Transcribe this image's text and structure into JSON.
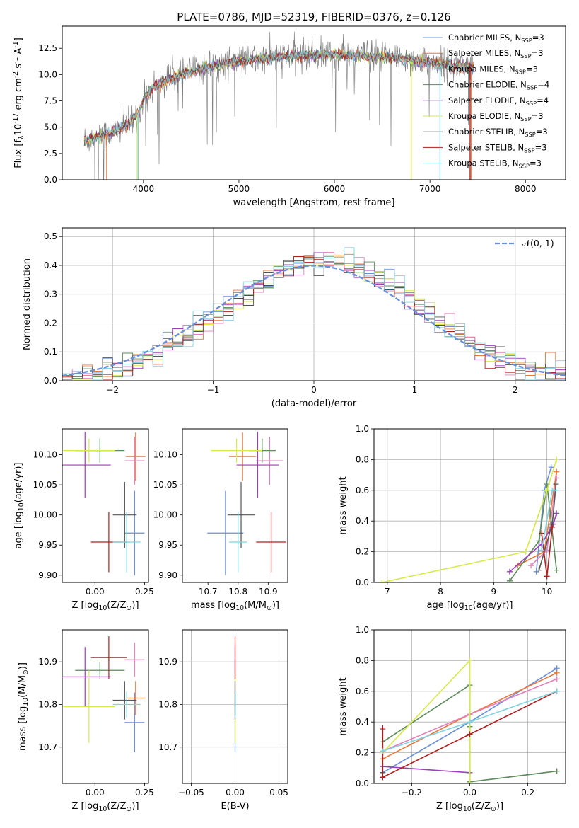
{
  "colors": [
    "#6a8fd9",
    "#e8773a",
    "#e47fba",
    "#5c8a5a",
    "#9b3fba",
    "#d6ea4a",
    "#555555",
    "#b01e1e",
    "#7fd4df"
  ],
  "title": "PLATE=0786, MJD=52319, FIBERID=0376, z=0.126",
  "chart_data": [
    {
      "id": "spectrum",
      "type": "line",
      "title": "PLATE=0786, MJD=52319, FIBERID=0376, z=0.126",
      "xlabel": "wavelength [Angstrom, rest frame]",
      "ylabel": "Flux [f$_\\lambda$10$^{-17}$ erg cm$^{-2}$ s$^{-1}$ A$^{-1}$]",
      "xlim": [
        3150,
        8420
      ],
      "ylim": [
        0,
        14.6
      ],
      "xticks": [
        4000,
        5000,
        6000,
        7000,
        8000
      ],
      "yticks": [
        0.0,
        2.5,
        5.0,
        7.5,
        10.0,
        12.5
      ],
      "legend": "top-right",
      "continuum": [
        [
          3380,
          3.8
        ],
        [
          3500,
          4.0
        ],
        [
          3700,
          4.6
        ],
        [
          3850,
          5.3
        ],
        [
          3950,
          6.4
        ],
        [
          4050,
          8.4
        ],
        [
          4200,
          9.3
        ],
        [
          4350,
          9.8
        ],
        [
          4500,
          10.3
        ],
        [
          4700,
          10.8
        ],
        [
          5000,
          11.3
        ],
        [
          5300,
          11.6
        ],
        [
          5600,
          11.8
        ],
        [
          6000,
          11.9
        ],
        [
          6300,
          11.8
        ],
        [
          6600,
          11.6
        ],
        [
          6900,
          11.3
        ],
        [
          7100,
          11.0
        ],
        [
          7300,
          10.8
        ],
        [
          7450,
          10.6
        ]
      ],
      "series": [
        {
          "name": "Chabrier MILES, N$_{SSP}$=3",
          "color": "#6a8fd9"
        },
        {
          "name": "Salpeter MILES, N$_{SSP}$=3",
          "color": "#e8773a"
        },
        {
          "name": "Kroupa MILES, N$_{SSP}$=3",
          "color": "#e8773a"
        },
        {
          "name": "Chabrier ELODIE, N$_{SSP}$=4",
          "color": "#5c8a5a"
        },
        {
          "name": "Salpeter ELODIE, N$_{SSP}$=4",
          "color": "#9b3fba"
        },
        {
          "name": "Kroupa ELODIE, N$_{SSP}$=3",
          "color": "#d6ea4a"
        },
        {
          "name": "Chabrier STELIB, N$_{SSP}$=3",
          "color": "#555555"
        },
        {
          "name": "Salpeter STELIB, N$_{SSP}$=3",
          "color": "#b01e1e"
        },
        {
          "name": "Kroupa STELIB, N$_{SSP}$=3",
          "color": "#7fd4df"
        }
      ]
    },
    {
      "id": "residuals",
      "type": "histogram",
      "xlabel": "(data-model)/error",
      "ylabel": "Normed distribution",
      "xlim": [
        -2.5,
        2.5
      ],
      "ylim": [
        0,
        0.53
      ],
      "xticks": [
        -2,
        -1,
        0,
        1,
        2
      ],
      "yticks": [
        0.0,
        0.1,
        0.2,
        0.3,
        0.4,
        0.5
      ],
      "grid": true,
      "legend": "top-right",
      "reference_label": "$\\mathcal{N}(0, 1)$",
      "bin_width": 0.1
    },
    {
      "id": "age_vs_Z",
      "type": "errorbar",
      "xlabel": "Z [log$_{10}$(Z/Z$_\\odot$)]",
      "ylabel": "age  [log$_{10}$($age/yr$)]",
      "xlim": [
        -0.165,
        0.27
      ],
      "ylim": [
        9.888,
        10.143
      ],
      "xticks": [
        0.0,
        0.25
      ],
      "yticks": [
        9.9,
        9.95,
        10.0,
        10.05,
        10.1
      ],
      "points": [
        {
          "c": "#6a8fd9",
          "x": 0.2,
          "xe": 0.05,
          "y": 9.97,
          "ye": 0.07
        },
        {
          "c": "#e8773a",
          "x": 0.205,
          "xe": 0.05,
          "y": 10.097,
          "ye": 0.04
        },
        {
          "c": "#e47fba",
          "x": 0.2,
          "xe": 0.05,
          "y": 10.09,
          "ye": 0.04
        },
        {
          "c": "#5c8a5a",
          "x": 0.025,
          "xe": 0.125,
          "y": 10.107,
          "ye": 0.02
        },
        {
          "c": "#9b3fba",
          "x": -0.05,
          "xe": 0.13,
          "y": 10.083,
          "ye": 0.055
        },
        {
          "c": "#d6ea4a",
          "x": -0.03,
          "xe": 0.13,
          "y": 10.107,
          "ye": 0.02
        },
        {
          "c": "#555555",
          "x": 0.15,
          "xe": 0.06,
          "y": 10.0,
          "ye": 0.055
        },
        {
          "c": "#b01e1e",
          "x": 0.07,
          "xe": 0.09,
          "y": 9.955,
          "ye": 0.05
        },
        {
          "c": "#7fd4df",
          "x": 0.16,
          "xe": 0.07,
          "y": 9.955,
          "ye": 0.05
        }
      ]
    },
    {
      "id": "age_vs_mass",
      "type": "errorbar",
      "xlabel": "mass [log$_{10}$($M/M_\\odot$)]",
      "xlim": [
        10.615,
        10.965
      ],
      "ylim": [
        9.888,
        10.143
      ],
      "xticks": [
        10.7,
        10.8,
        10.9
      ],
      "yticks": [
        9.9,
        9.95,
        10.0,
        10.05,
        10.1
      ],
      "points": [
        {
          "c": "#6a8fd9",
          "x": 10.758,
          "xe": 0.06,
          "y": 9.97,
          "ye": 0.07
        },
        {
          "c": "#e8773a",
          "x": 10.815,
          "xe": 0.045,
          "y": 10.097,
          "ye": 0.04
        },
        {
          "c": "#e47fba",
          "x": 10.905,
          "xe": 0.045,
          "y": 10.09,
          "ye": 0.04
        },
        {
          "c": "#5c8a5a",
          "x": 10.88,
          "xe": 0.045,
          "y": 10.107,
          "ye": 0.02
        },
        {
          "c": "#9b3fba",
          "x": 10.865,
          "xe": 0.07,
          "y": 10.083,
          "ye": 0.055
        },
        {
          "c": "#d6ea4a",
          "x": 10.795,
          "xe": 0.085,
          "y": 10.107,
          "ye": 0.02
        },
        {
          "c": "#555555",
          "x": 10.81,
          "xe": 0.045,
          "y": 10.0,
          "ye": 0.055
        },
        {
          "c": "#b01e1e",
          "x": 10.91,
          "xe": 0.05,
          "y": 9.955,
          "ye": 0.05
        },
        {
          "c": "#7fd4df",
          "x": 10.8,
          "xe": 0.03,
          "y": 9.955,
          "ye": 0.05
        }
      ]
    },
    {
      "id": "weight_vs_age",
      "type": "line",
      "xlabel": "age  [log$_{10}$($age/yr$)]",
      "ylabel": "mass weight",
      "xlim": [
        6.75,
        10.35
      ],
      "ylim": [
        0,
        1.0
      ],
      "xticks": [
        7,
        8,
        9,
        10
      ],
      "yticks": [
        0.0,
        0.2,
        0.4,
        0.6,
        0.8,
        1.0
      ],
      "grid": true,
      "series": [
        {
          "c": "#6a8fd9",
          "x": [
            9.8,
            9.95,
            10.08
          ],
          "y": [
            0.07,
            0.6,
            0.75
          ]
        },
        {
          "c": "#e8773a",
          "x": [
            9.45,
            9.95,
            10.18
          ],
          "y": [
            0.11,
            0.2,
            0.72
          ]
        },
        {
          "c": "#e47fba",
          "x": [
            9.7,
            10.0,
            10.18
          ],
          "y": [
            0.11,
            0.21,
            0.68
          ]
        },
        {
          "c": "#5c8a5a",
          "x": [
            9.3,
            9.85,
            10.0,
            10.18
          ],
          "y": [
            0.01,
            0.27,
            0.64,
            0.08
          ]
        },
        {
          "c": "#9b3fba",
          "x": [
            9.3,
            9.9,
            10.12,
            10.18
          ],
          "y": [
            0.07,
            0.25,
            0.38,
            0.45
          ]
        },
        {
          "c": "#d6ea4a",
          "x": [
            6.9,
            9.6,
            10.0,
            10.18
          ],
          "y": [
            0.0,
            0.2,
            0.6,
            0.8
          ]
        },
        {
          "c": "#555555",
          "x": [
            9.85,
            10.1,
            10.17
          ],
          "y": [
            0.08,
            0.38,
            0.64
          ]
        },
        {
          "c": "#b01e1e",
          "x": [
            9.9,
            10.0,
            10.1
          ],
          "y": [
            0.32,
            0.04,
            0.36
          ]
        },
        {
          "c": "#7fd4df",
          "x": [
            9.9,
            10.1,
            10.17
          ],
          "y": [
            0.21,
            0.6,
            0.6
          ]
        }
      ]
    },
    {
      "id": "mass_vs_Z",
      "type": "errorbar",
      "xlabel": "Z [log$_{10}$(Z/Z$_\\odot$)]",
      "ylabel": "mass [log$_{10}$($M/M_\\odot$)]",
      "xlim": [
        -0.165,
        0.27
      ],
      "ylim": [
        10.615,
        10.975
      ],
      "xticks": [
        0.0,
        0.25
      ],
      "yticks": [
        10.7,
        10.8,
        10.9
      ],
      "points": [
        {
          "c": "#6a8fd9",
          "x": 0.2,
          "xe": 0.05,
          "y": 10.758,
          "ye": 0.07
        },
        {
          "c": "#e8773a",
          "x": 0.205,
          "xe": 0.05,
          "y": 10.815,
          "ye": 0.04
        },
        {
          "c": "#e47fba",
          "x": 0.2,
          "xe": 0.05,
          "y": 10.905,
          "ye": 0.04
        },
        {
          "c": "#5c8a5a",
          "x": 0.025,
          "xe": 0.125,
          "y": 10.88,
          "ye": 0.02
        },
        {
          "c": "#9b3fba",
          "x": -0.05,
          "xe": 0.13,
          "y": 10.865,
          "ye": 0.07
        },
        {
          "c": "#d6ea4a",
          "x": -0.03,
          "xe": 0.13,
          "y": 10.795,
          "ye": 0.085
        },
        {
          "c": "#555555",
          "x": 0.15,
          "xe": 0.06,
          "y": 10.81,
          "ye": 0.045
        },
        {
          "c": "#b01e1e",
          "x": 0.07,
          "xe": 0.09,
          "y": 10.91,
          "ye": 0.05
        },
        {
          "c": "#7fd4df",
          "x": 0.16,
          "xe": 0.07,
          "y": 10.8,
          "ye": 0.03
        }
      ]
    },
    {
      "id": "mass_vs_EBV",
      "type": "errorbar",
      "xlabel": "E(B-V)",
      "xlim": [
        -0.06,
        0.06
      ],
      "ylim": [
        10.615,
        10.975
      ],
      "xticks": [
        -0.05,
        0.0,
        0.05
      ],
      "yticks": [
        10.7,
        10.8,
        10.9
      ],
      "points": [
        {
          "c": "#6a8fd9",
          "x": 0,
          "xe": 0,
          "y": 10.758,
          "ye": 0.07
        },
        {
          "c": "#e8773a",
          "x": 0,
          "xe": 0,
          "y": 10.815,
          "ye": 0.04
        },
        {
          "c": "#e47fba",
          "x": 0,
          "xe": 0,
          "y": 10.905,
          "ye": 0.04
        },
        {
          "c": "#5c8a5a",
          "x": 0,
          "xe": 0,
          "y": 10.88,
          "ye": 0.02
        },
        {
          "c": "#9b3fba",
          "x": 0,
          "xe": 0,
          "y": 10.865,
          "ye": 0.07
        },
        {
          "c": "#d6ea4a",
          "x": 0,
          "xe": 0,
          "y": 10.795,
          "ye": 0.085
        },
        {
          "c": "#555555",
          "x": 0,
          "xe": 0,
          "y": 10.81,
          "ye": 0.045
        },
        {
          "c": "#b01e1e",
          "x": 0,
          "xe": 0,
          "y": 10.91,
          "ye": 0.05
        },
        {
          "c": "#7fd4df",
          "x": 0,
          "xe": 0,
          "y": 10.8,
          "ye": 0.03
        }
      ]
    },
    {
      "id": "weight_vs_Z",
      "type": "line",
      "xlabel": "Z [log$_{10}$(Z/Z$_\\odot$)]",
      "ylabel": "mass weight",
      "xlim": [
        -0.33,
        0.33
      ],
      "ylim": [
        0,
        1.0
      ],
      "xticks": [
        -0.2,
        0.0,
        0.2
      ],
      "yticks": [
        0.0,
        0.2,
        0.4,
        0.6,
        0.8,
        1.0
      ],
      "grid": true,
      "series": [
        {
          "c": "#6a8fd9",
          "x": [
            -0.3,
            0.0,
            0.3
          ],
          "y": [
            0.07,
            0.4,
            0.75
          ]
        },
        {
          "c": "#e8773a",
          "x": [
            -0.3,
            0.0,
            0.3
          ],
          "y": [
            0.16,
            0.45,
            0.72
          ]
        },
        {
          "c": "#e47fba",
          "x": [
            -0.3,
            0.0,
            0.3
          ],
          "y": [
            0.21,
            0.45,
            0.68
          ]
        },
        {
          "c": "#5c8a5a",
          "x": [
            -0.3,
            0.0,
            0.0,
            0.0,
            0.3
          ],
          "y": [
            0.27,
            0.64,
            0.37,
            0.01,
            0.08
          ]
        },
        {
          "c": "#9b3fba",
          "x": [
            -0.3,
            0.0
          ],
          "y": [
            0.11,
            0.07
          ]
        },
        {
          "c": "#d6ea4a",
          "x": [
            -0.3,
            0.0,
            0.0
          ],
          "y": [
            0.2,
            0.8,
            0.0
          ]
        },
        {
          "c": "#555555",
          "x": [
            -0.3,
            -0.3
          ],
          "y": [
            0.35,
            0.07
          ]
        },
        {
          "c": "#b01e1e",
          "x": [
            -0.3,
            -0.3,
            0.0,
            0.3
          ],
          "y": [
            0.36,
            0.04,
            0.32,
            0.6
          ]
        },
        {
          "c": "#7fd4df",
          "x": [
            -0.3,
            0.0,
            0.3
          ],
          "y": [
            0.21,
            0.4,
            0.6
          ]
        }
      ]
    }
  ]
}
